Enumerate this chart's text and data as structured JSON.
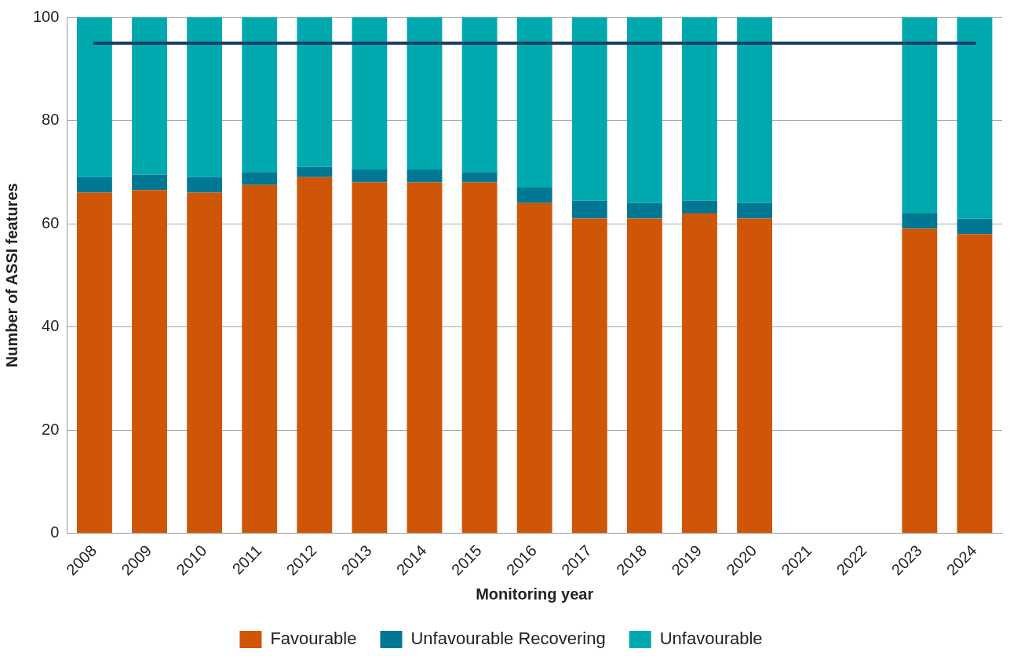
{
  "chart_data": {
    "type": "bar",
    "stacked": true,
    "xlabel": "Monitoring year",
    "ylabel": "Number of ASSI features",
    "categories": [
      "2008",
      "2009",
      "2010",
      "2011",
      "2012",
      "2013",
      "2014",
      "2015",
      "2016",
      "2017",
      "2018",
      "2019",
      "2020",
      "2021",
      "2022",
      "2023",
      "2024"
    ],
    "series": [
      {
        "name": "Favourable",
        "color": "#cf5507",
        "values": [
          66,
          66.5,
          66,
          67.5,
          69,
          68,
          68,
          68,
          64,
          61,
          61,
          62,
          61,
          null,
          null,
          59,
          58
        ]
      },
      {
        "name": "Unfavourable Recovering",
        "color": "#007893",
        "values": [
          3,
          3,
          3,
          2.5,
          2,
          2.5,
          2.5,
          2,
          3,
          3.5,
          3,
          2.5,
          3,
          null,
          null,
          3,
          3
        ]
      },
      {
        "name": "Unfavourable",
        "color": "#00a9ad",
        "values": [
          31,
          30.5,
          31,
          30,
          29,
          29.5,
          29.5,
          30,
          33,
          35.5,
          36,
          35.5,
          36,
          null,
          null,
          38,
          39
        ]
      },
      {
        "type": "line",
        "color": "#1b3f66",
        "values": [
          95,
          95,
          95,
          95,
          95,
          95,
          95,
          95,
          95,
          95,
          95,
          95,
          95,
          95,
          95,
          95,
          95
        ]
      }
    ],
    "ylim": [
      0,
      100
    ],
    "yticks": [
      0,
      20,
      40,
      60,
      80,
      100
    ],
    "grid": "y",
    "legend": "bottom",
    "marker": "none"
  }
}
